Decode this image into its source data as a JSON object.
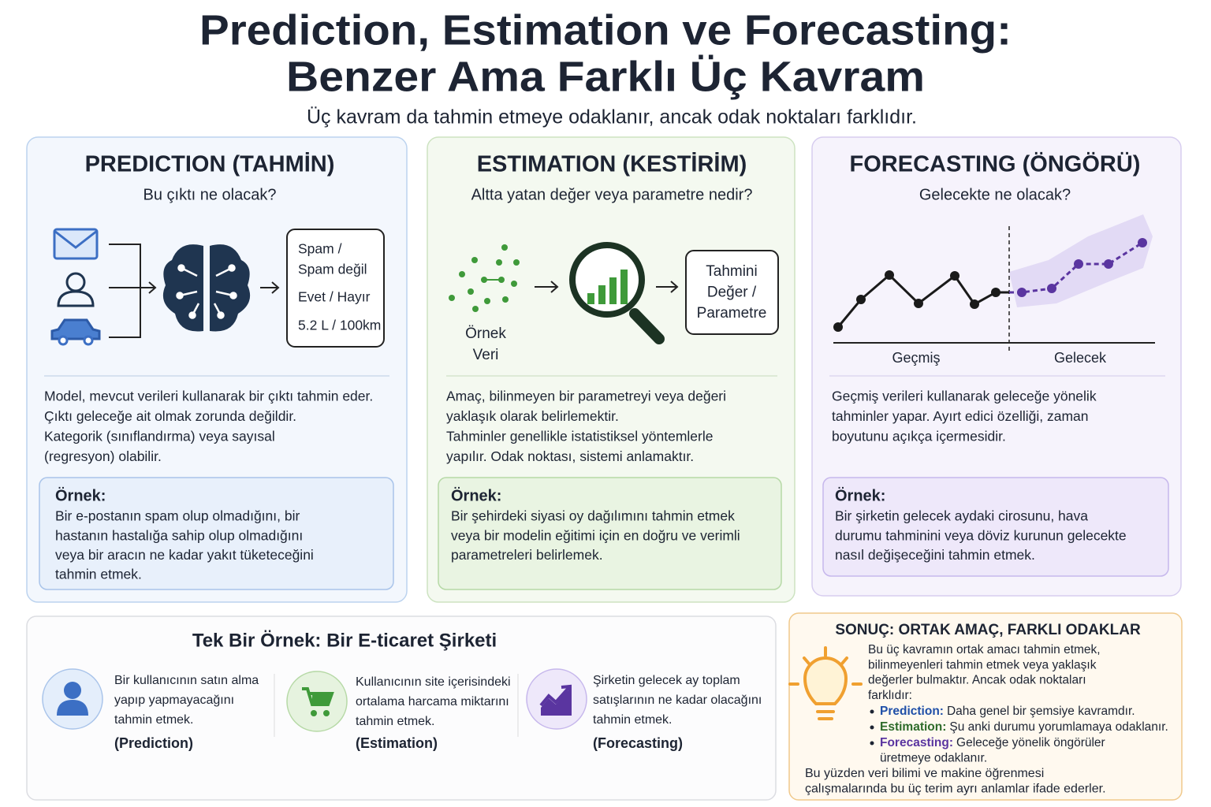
{
  "header": {
    "title_line1": "Prediction, Estimation ve Forecasting:",
    "title_line2": "Benzer Ama Farklı Üç Kavram",
    "subtitle": "Üç kavram da tahmin etmeye odaklanır, ancak odak noktaları farklıdır."
  },
  "cards": [
    {
      "title": "PREDICTION (TAHMİN)",
      "question": "Bu çıktı ne olacak?",
      "diagram_labels": [
        "Spam /",
        "Spam değil",
        "Evet / Hayır",
        "5.2 L / 100km"
      ],
      "description": [
        "Model, mevcut verileri kullanarak bir çıktı tahmin eder.",
        "Çıktı geleceğe ait olmak zorunda değildir.",
        "Kategorik (sınıflandırma) veya sayısal",
        "(regresyon) olabilir."
      ],
      "example_label": "Örnek:",
      "example": [
        "Bir e-postanın spam olup olmadığını, bir",
        "hastanın hastalığa sahip olup olmadığını",
        "veya bir aracın ne kadar yakıt tüketeceğini",
        "tahmin etmek."
      ]
    },
    {
      "title": "ESTIMATION (KESTİRİM)",
      "question": "Altta yatan değer veya parametre nedir?",
      "diagram_input": [
        "Örnek",
        "Veri"
      ],
      "diagram_labels": [
        "Tahmini",
        "Değer /",
        "Parametre"
      ],
      "description": [
        "Amaç, bilinmeyen bir parametreyi veya değeri",
        "yaklaşık olarak belirlemektir.",
        "Tahminler genellikle istatistiksel yöntemlerle",
        "yapılır. Odak noktası, sistemi anlamaktır."
      ],
      "example_label": "Örnek:",
      "example": [
        "Bir şehirdeki siyasi oy dağılımını tahmin etmek",
        "veya bir modelin eğitimi için en doğru ve verimli",
        "parametreleri belirlemek."
      ]
    },
    {
      "title": "FORECASTING (ÖNGÖRÜ)",
      "question": "Gelecekte ne olacak?",
      "diagram_labels": [
        "Geçmiş",
        "Gelecek"
      ],
      "description": [
        "Geçmiş verileri kullanarak geleceğe yönelik",
        "tahminler yapar. Ayırt edici özelliği, zaman",
        "boyutunu açıkça içermesidir."
      ],
      "example_label": "Örnek:",
      "example": [
        "Bir şirketin gelecek aydaki cirosunu, hava",
        "durumu tahminini veya döviz kurunun gelecekte",
        "nasıl değişeceğini tahmin etmek."
      ]
    }
  ],
  "example_section": {
    "title": "Tek Bir Örnek: Bir E-ticaret Şirketi",
    "items": [
      {
        "text": [
          "Bir kullanıcının satın alma",
          "yapıp yapmayacağını",
          "tahmin etmek."
        ],
        "tag": "(Prediction)"
      },
      {
        "text": [
          "Kullanıcının site içerisindeki",
          "ortalama harcama miktarını",
          "tahmin etmek."
        ],
        "tag": "(Estimation)"
      },
      {
        "text": [
          "Şirketin gelecek ay toplam",
          "satışlarının ne kadar olacağını",
          "tahmin etmek."
        ],
        "tag": "(Forecasting)"
      }
    ]
  },
  "conclusion": {
    "title": "SONUÇ: ORTAK AMAÇ, FARKLI ODAKLAR",
    "intro": [
      "Bu üç kavramın ortak amacı tahmin etmek,",
      "bilinmeyenleri tahmin etmek veya yaklaşık",
      "değerler bulmaktır. Ancak odak noktaları",
      "farklıdır:"
    ],
    "bullets": [
      {
        "term": "Prediction:",
        "text": [
          "Daha genel bir şemsiye kavramdır."
        ]
      },
      {
        "term": "Estimation:",
        "text": [
          "Şu anki durumu yorumlamaya odaklanır."
        ]
      },
      {
        "term": "Forecasting:",
        "text": [
          "Geleceğe yönelik öngörüler",
          "üretmeye odaklanır."
        ]
      }
    ],
    "closing": [
      "Bu yüzden veri bilimi ve makine öğrenmesi",
      "çalışmalarında bu üç terim ayrı anlamlar ifade ederler."
    ]
  }
}
